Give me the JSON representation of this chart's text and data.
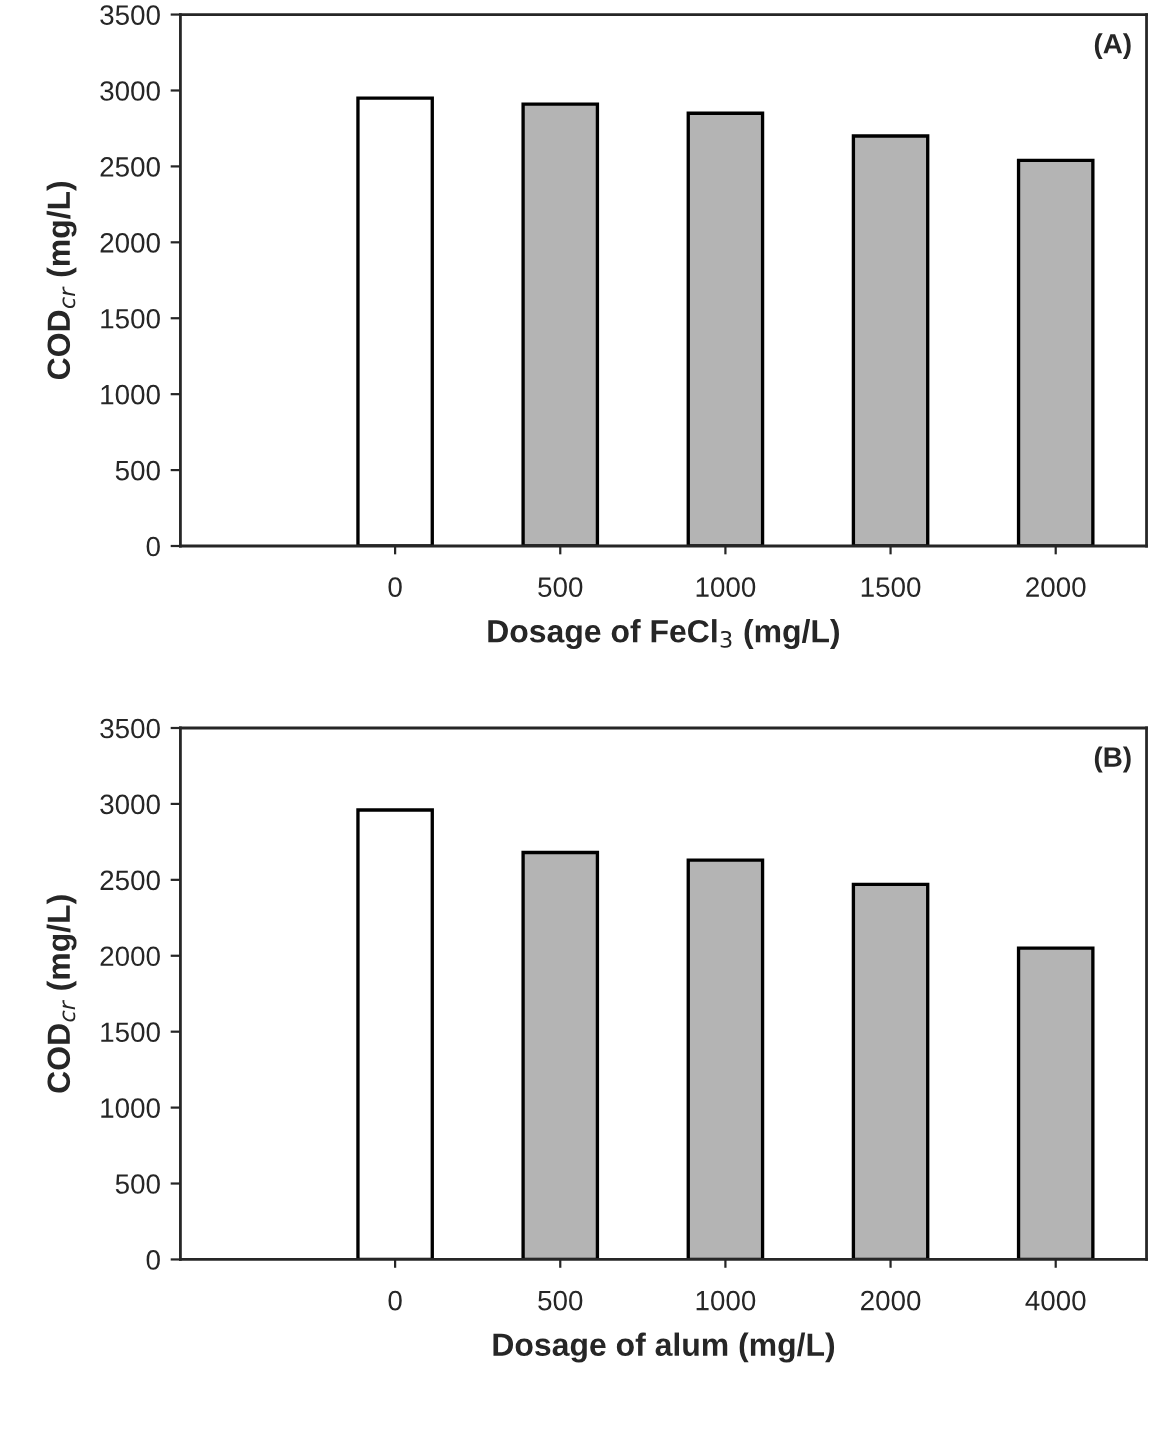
{
  "chart_data": [
    {
      "type": "bar",
      "categories": [
        "0",
        "500",
        "1000",
        "1500",
        "2000"
      ],
      "values": [
        2950,
        2910,
        2850,
        2700,
        2540
      ],
      "colors": [
        "#ffffff",
        "#b4b4b4",
        "#b4b4b4",
        "#b4b4b4",
        "#b4b4b4"
      ],
      "xlabel": "Dosage of FeCl$_{3}$ (mg/L)",
      "ylabel": "COD$_{cr}$ (mg/L)",
      "ylim": [
        0,
        3500
      ],
      "yticks": [
        0,
        500,
        1000,
        1500,
        2000,
        2500,
        3000,
        3500
      ],
      "annotations": [
        "(A)"
      ],
      "grid": false,
      "legend": false
    },
    {
      "type": "bar",
      "categories": [
        "0",
        "500",
        "1000",
        "2000",
        "4000"
      ],
      "values": [
        2960,
        2680,
        2630,
        2470,
        2050
      ],
      "colors": [
        "#ffffff",
        "#b4b4b4",
        "#b4b4b4",
        "#b4b4b4",
        "#b4b4b4"
      ],
      "xlabel": "Dosage of alum (mg/L)",
      "ylabel": "COD$_{cr}$ (mg/L)",
      "ylim": [
        0,
        3500
      ],
      "yticks": [
        0,
        500,
        1000,
        1500,
        2000,
        2500,
        3000,
        3500
      ],
      "annotations": [
        "(B)"
      ],
      "grid": false,
      "legend": false
    }
  ]
}
